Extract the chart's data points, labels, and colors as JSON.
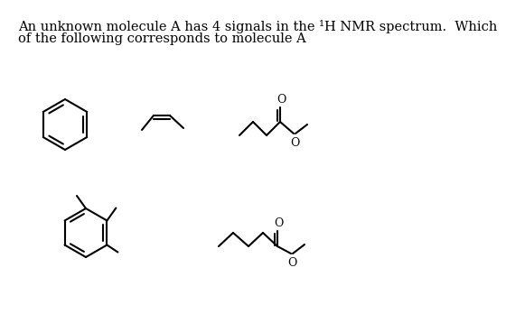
{
  "title_line1": "An unknown molecule A has 4 signals in the ¹H NMR spectrum.  Which",
  "title_line2": "of the following corresponds to molecule A",
  "bg_color": "#ffffff",
  "line_color": "#000000",
  "line_width": 1.5,
  "font_size": 10.5
}
